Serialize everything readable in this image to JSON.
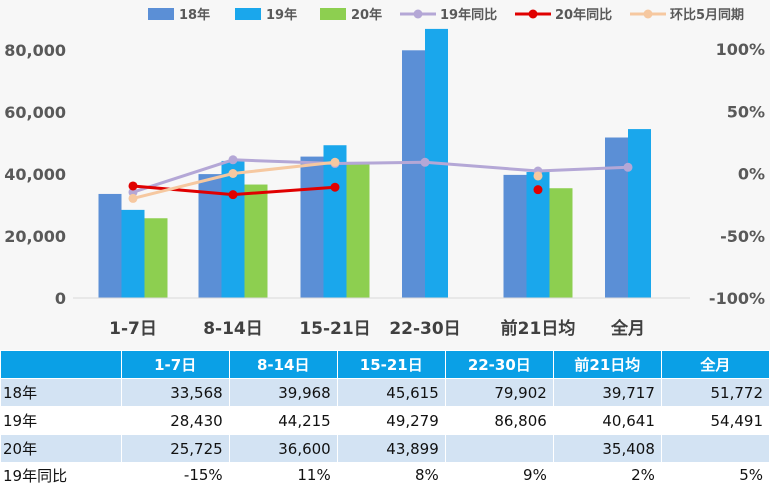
{
  "chart_data": {
    "type": "bar",
    "categories": [
      "1-7日",
      "8-14日",
      "15-21日",
      "22-30日",
      "前21日均",
      "全月"
    ],
    "series": [
      {
        "name": "18年",
        "kind": "bar",
        "color": "#5b8fd6",
        "values": [
          33568,
          39968,
          45615,
          79902,
          39717,
          51772
        ]
      },
      {
        "name": "19年",
        "kind": "bar",
        "color": "#1aa7ec",
        "values": [
          28430,
          44215,
          49279,
          86806,
          40641,
          54491
        ]
      },
      {
        "name": "20年",
        "kind": "bar",
        "color": "#8dcf50",
        "values": [
          25725,
          36600,
          43899,
          null,
          35408,
          null
        ]
      },
      {
        "name": "19年同比",
        "kind": "line",
        "axis": "right",
        "color": "#b4a7d6",
        "values": [
          -0.15,
          0.11,
          0.08,
          0.09,
          0.02,
          0.05
        ]
      },
      {
        "name": "20年同比",
        "kind": "line",
        "axis": "right",
        "color": "#e00000",
        "values": [
          -0.1,
          -0.17,
          -0.11,
          null,
          -0.13,
          null
        ]
      },
      {
        "name": "环比5月同期",
        "kind": "line",
        "axis": "right",
        "color": "#f6c8a0",
        "values": [
          -0.2,
          0.0,
          0.09,
          null,
          -0.02,
          null
        ]
      }
    ],
    "y_left": {
      "min": 0,
      "max": 80000,
      "ticks": [
        "0",
        "20,000",
        "40,000",
        "60,000",
        "80,000"
      ]
    },
    "y_right": {
      "min": -1,
      "max": 1,
      "ticks": [
        "-100%",
        "-50%",
        "0%",
        "50%",
        "100%"
      ]
    },
    "grid": false,
    "legend": "top"
  },
  "table": {
    "headers": [
      "",
      "1-7日",
      "8-14日",
      "15-21日",
      "22-30日",
      "前21日均",
      "全月"
    ],
    "rows": [
      {
        "label": "18年",
        "cells": [
          "33,568",
          "39,968",
          "45,615",
          "79,902",
          "39,717",
          "51,772"
        ]
      },
      {
        "label": "19年",
        "cells": [
          "28,430",
          "44,215",
          "49,279",
          "86,806",
          "40,641",
          "54,491"
        ]
      },
      {
        "label": "20年",
        "cells": [
          "25,725",
          "36,600",
          "43,899",
          "",
          "35,408",
          ""
        ]
      },
      {
        "label": "19年同比",
        "cells": [
          "-15%",
          "11%",
          "8%",
          "9%",
          "2%",
          "5%"
        ]
      }
    ]
  }
}
